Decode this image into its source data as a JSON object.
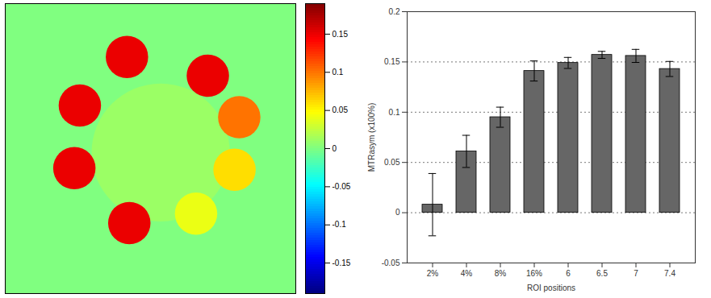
{
  "chart_data": [
    {
      "type": "heatmap",
      "x": [
        198,
        155,
        258,
        298,
        292,
        243,
        158,
        88,
        95
      ],
      "y": [
        190,
        68,
        92,
        145,
        212,
        268,
        280,
        210,
        130
      ],
      "radius": [
        88,
        27,
        27,
        27,
        27,
        27,
        27,
        27,
        27
      ],
      "values": [
        0.01,
        0.15,
        0.15,
        0.1,
        0.06,
        0.04,
        0.15,
        0.15,
        0.15
      ],
      "background_value": 0,
      "xlim": [
        0,
        370
      ],
      "ylim": [
        0,
        370
      ],
      "tick_labels": false,
      "colorbar": {
        "range": [
          -0.19,
          0.19
        ],
        "ticks": [
          -0.15,
          -0.1,
          -0.05,
          0,
          0.05,
          0.1,
          0.15
        ]
      }
    },
    {
      "type": "bar",
      "categories": [
        "2%",
        "4%",
        "8%",
        "16%",
        "6",
        "6.5",
        "7",
        "7.4"
      ],
      "values": [
        0.008,
        0.061,
        0.095,
        0.141,
        0.149,
        0.157,
        0.156,
        0.143
      ],
      "errors": [
        0.031,
        0.016,
        0.01,
        0.01,
        0.0055,
        0.0035,
        0.0065,
        0.0075
      ],
      "color": "#666666",
      "xlabel": "ROI positions",
      "ylabel": "MTRasym (x100%)",
      "ylim": [
        -0.05,
        0.2
      ],
      "yticks": [
        -0.05,
        0,
        0.05,
        0.1,
        0.15,
        0.2
      ],
      "grid": true
    }
  ]
}
